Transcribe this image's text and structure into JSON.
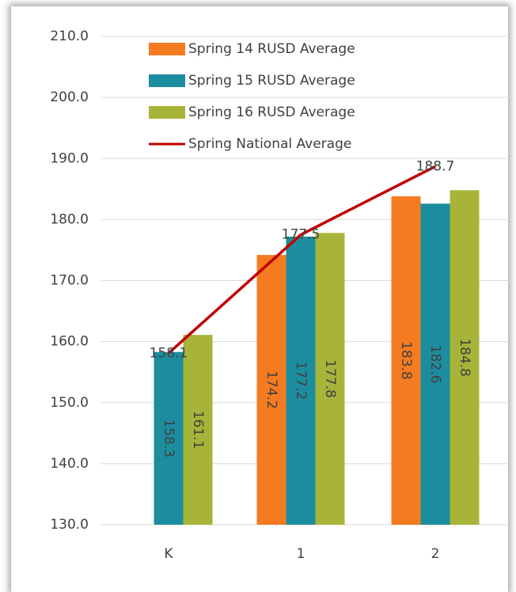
{
  "chart_data": {
    "type": "bar",
    "categories": [
      "K",
      "1",
      "2"
    ],
    "series": [
      {
        "name": "Spring 14 RUSD Average",
        "color": "#f47b20",
        "values": [
          null,
          174.2,
          183.8
        ]
      },
      {
        "name": "Spring 15 RUSD Average",
        "color": "#1c8d9e",
        "values": [
          158.3,
          177.2,
          182.6
        ]
      },
      {
        "name": "Spring 16 RUSD Average",
        "color": "#a8b439",
        "values": [
          161.1,
          177.8,
          184.8
        ]
      },
      {
        "name": "Spring National Average",
        "color": "#c00000",
        "type": "line",
        "values": [
          158.1,
          177.5,
          188.7
        ]
      }
    ],
    "ylim": [
      130,
      210
    ],
    "yticks": [
      {
        "value": 130,
        "label": "130.0"
      },
      {
        "value": 140,
        "label": "140.0"
      },
      {
        "value": 150,
        "label": "150.0"
      },
      {
        "value": 160,
        "label": "160.0"
      },
      {
        "value": 170,
        "label": "170.0"
      },
      {
        "value": 180,
        "label": "180.0"
      },
      {
        "value": 190,
        "label": "190.0"
      },
      {
        "value": 200,
        "label": "200.0"
      },
      {
        "value": 210,
        "label": "210.0"
      }
    ],
    "grid": true
  }
}
